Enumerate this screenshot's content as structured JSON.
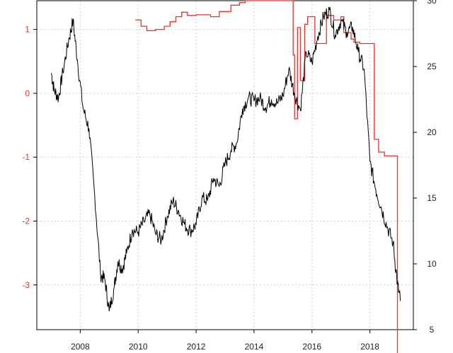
{
  "chart_data": {
    "type": "line",
    "title": "",
    "xlabel": "",
    "ylabel_left": "",
    "ylabel_right": "",
    "xlim": [
      2006.5,
      2019.5
    ],
    "ylim_left": [
      -3.7,
      1.45
    ],
    "ylim_right": [
      5,
      30
    ],
    "grid": true,
    "grid_style": "dotted",
    "x_ticks": [
      2008,
      2010,
      2012,
      2014,
      2016,
      2018
    ],
    "x_tick_labels": [
      "2008",
      "2010",
      "2012",
      "2014",
      "2016",
      "2018"
    ],
    "y_left_ticks": [
      1,
      0,
      -1,
      -2,
      -3
    ],
    "y_left_tick_labels": [
      "1",
      "0",
      "-1",
      "-2",
      "-3"
    ],
    "y_right_ticks": [
      30,
      25,
      20,
      15,
      10,
      5
    ],
    "y_right_tick_labels": [
      "30",
      "25",
      "20",
      "15",
      "10",
      "5"
    ],
    "colors": {
      "left_series": "#e8322f",
      "right_series": "#000000",
      "grid": "#cfcfcf",
      "frame": "#000000"
    },
    "series": [
      {
        "axis": "left",
        "step": true,
        "color": "#e8322f",
        "x": [
          2009.9,
          2010.1,
          2010.3,
          2010.6,
          2010.9,
          2011.1,
          2011.3,
          2011.5,
          2011.7,
          2012.0,
          2012.5,
          2012.8,
          2013.2,
          2013.5,
          2013.7,
          2014.0,
          2015.3,
          2015.35,
          2015.4,
          2015.5,
          2015.6,
          2015.75,
          2015.85,
          2016.1,
          2016.5,
          2016.75,
          2017.0,
          2017.1,
          2017.35,
          2017.45,
          2017.65,
          2018.15,
          2018.3,
          2018.5,
          2018.95,
          2019.0
        ],
        "y": [
          1.15,
          1.05,
          0.98,
          1.0,
          1.05,
          1.12,
          1.2,
          1.27,
          1.22,
          1.23,
          1.2,
          1.28,
          1.38,
          1.42,
          1.45,
          1.45,
          1.45,
          0.6,
          -0.4,
          1.03,
          0.2,
          1.08,
          1.2,
          0.78,
          1.22,
          1.15,
          1.2,
          0.95,
          0.85,
          0.8,
          0.78,
          -0.72,
          -0.92,
          -0.98,
          -4.2,
          -4.2
        ]
      },
      {
        "axis": "right",
        "step": false,
        "color": "#000000",
        "x": [
          2007.0,
          2007.1,
          2007.25,
          2007.4,
          2007.6,
          2007.75,
          2007.9,
          2008.1,
          2008.3,
          2008.5,
          2008.7,
          2008.85,
          2009.0,
          2009.17,
          2009.3,
          2009.45,
          2009.6,
          2009.8,
          2010.0,
          2010.2,
          2010.4,
          2010.6,
          2010.8,
          2011.0,
          2011.2,
          2011.4,
          2011.6,
          2011.8,
          2012.0,
          2012.2,
          2012.4,
          2012.6,
          2012.8,
          2013.0,
          2013.2,
          2013.4,
          2013.6,
          2013.8,
          2014.0,
          2014.2,
          2014.4,
          2014.6,
          2014.8,
          2015.0,
          2015.2,
          2015.4,
          2015.6,
          2015.8,
          2016.0,
          2016.2,
          2016.4,
          2016.6,
          2016.8,
          2017.0,
          2017.2,
          2017.4,
          2017.6,
          2017.8,
          2018.0,
          2018.2,
          2018.4,
          2018.6,
          2018.8,
          2018.95,
          2019.05
        ],
        "values": [
          24.5,
          23.2,
          22.6,
          24.6,
          27.0,
          28.5,
          25.5,
          21.8,
          20.3,
          15.2,
          9.2,
          8.8,
          6.4,
          8.2,
          10.2,
          9.6,
          10.8,
          12.6,
          12.4,
          13.2,
          13.8,
          12.3,
          11.8,
          13.6,
          14.8,
          14.0,
          13.0,
          12.5,
          13.0,
          15.0,
          14.8,
          16.5,
          15.9,
          17.6,
          18.6,
          19.2,
          21.8,
          22.6,
          22.4,
          22.6,
          21.9,
          22.5,
          22.2,
          22.8,
          24.8,
          22.9,
          21.7,
          26.1,
          25.3,
          27.3,
          28.8,
          29.3,
          27.4,
          28.5,
          27.6,
          28.0,
          26.1,
          24.8,
          17.8,
          15.7,
          14.2,
          12.8,
          11.6,
          8.5,
          7.2
        ]
      }
    ]
  }
}
